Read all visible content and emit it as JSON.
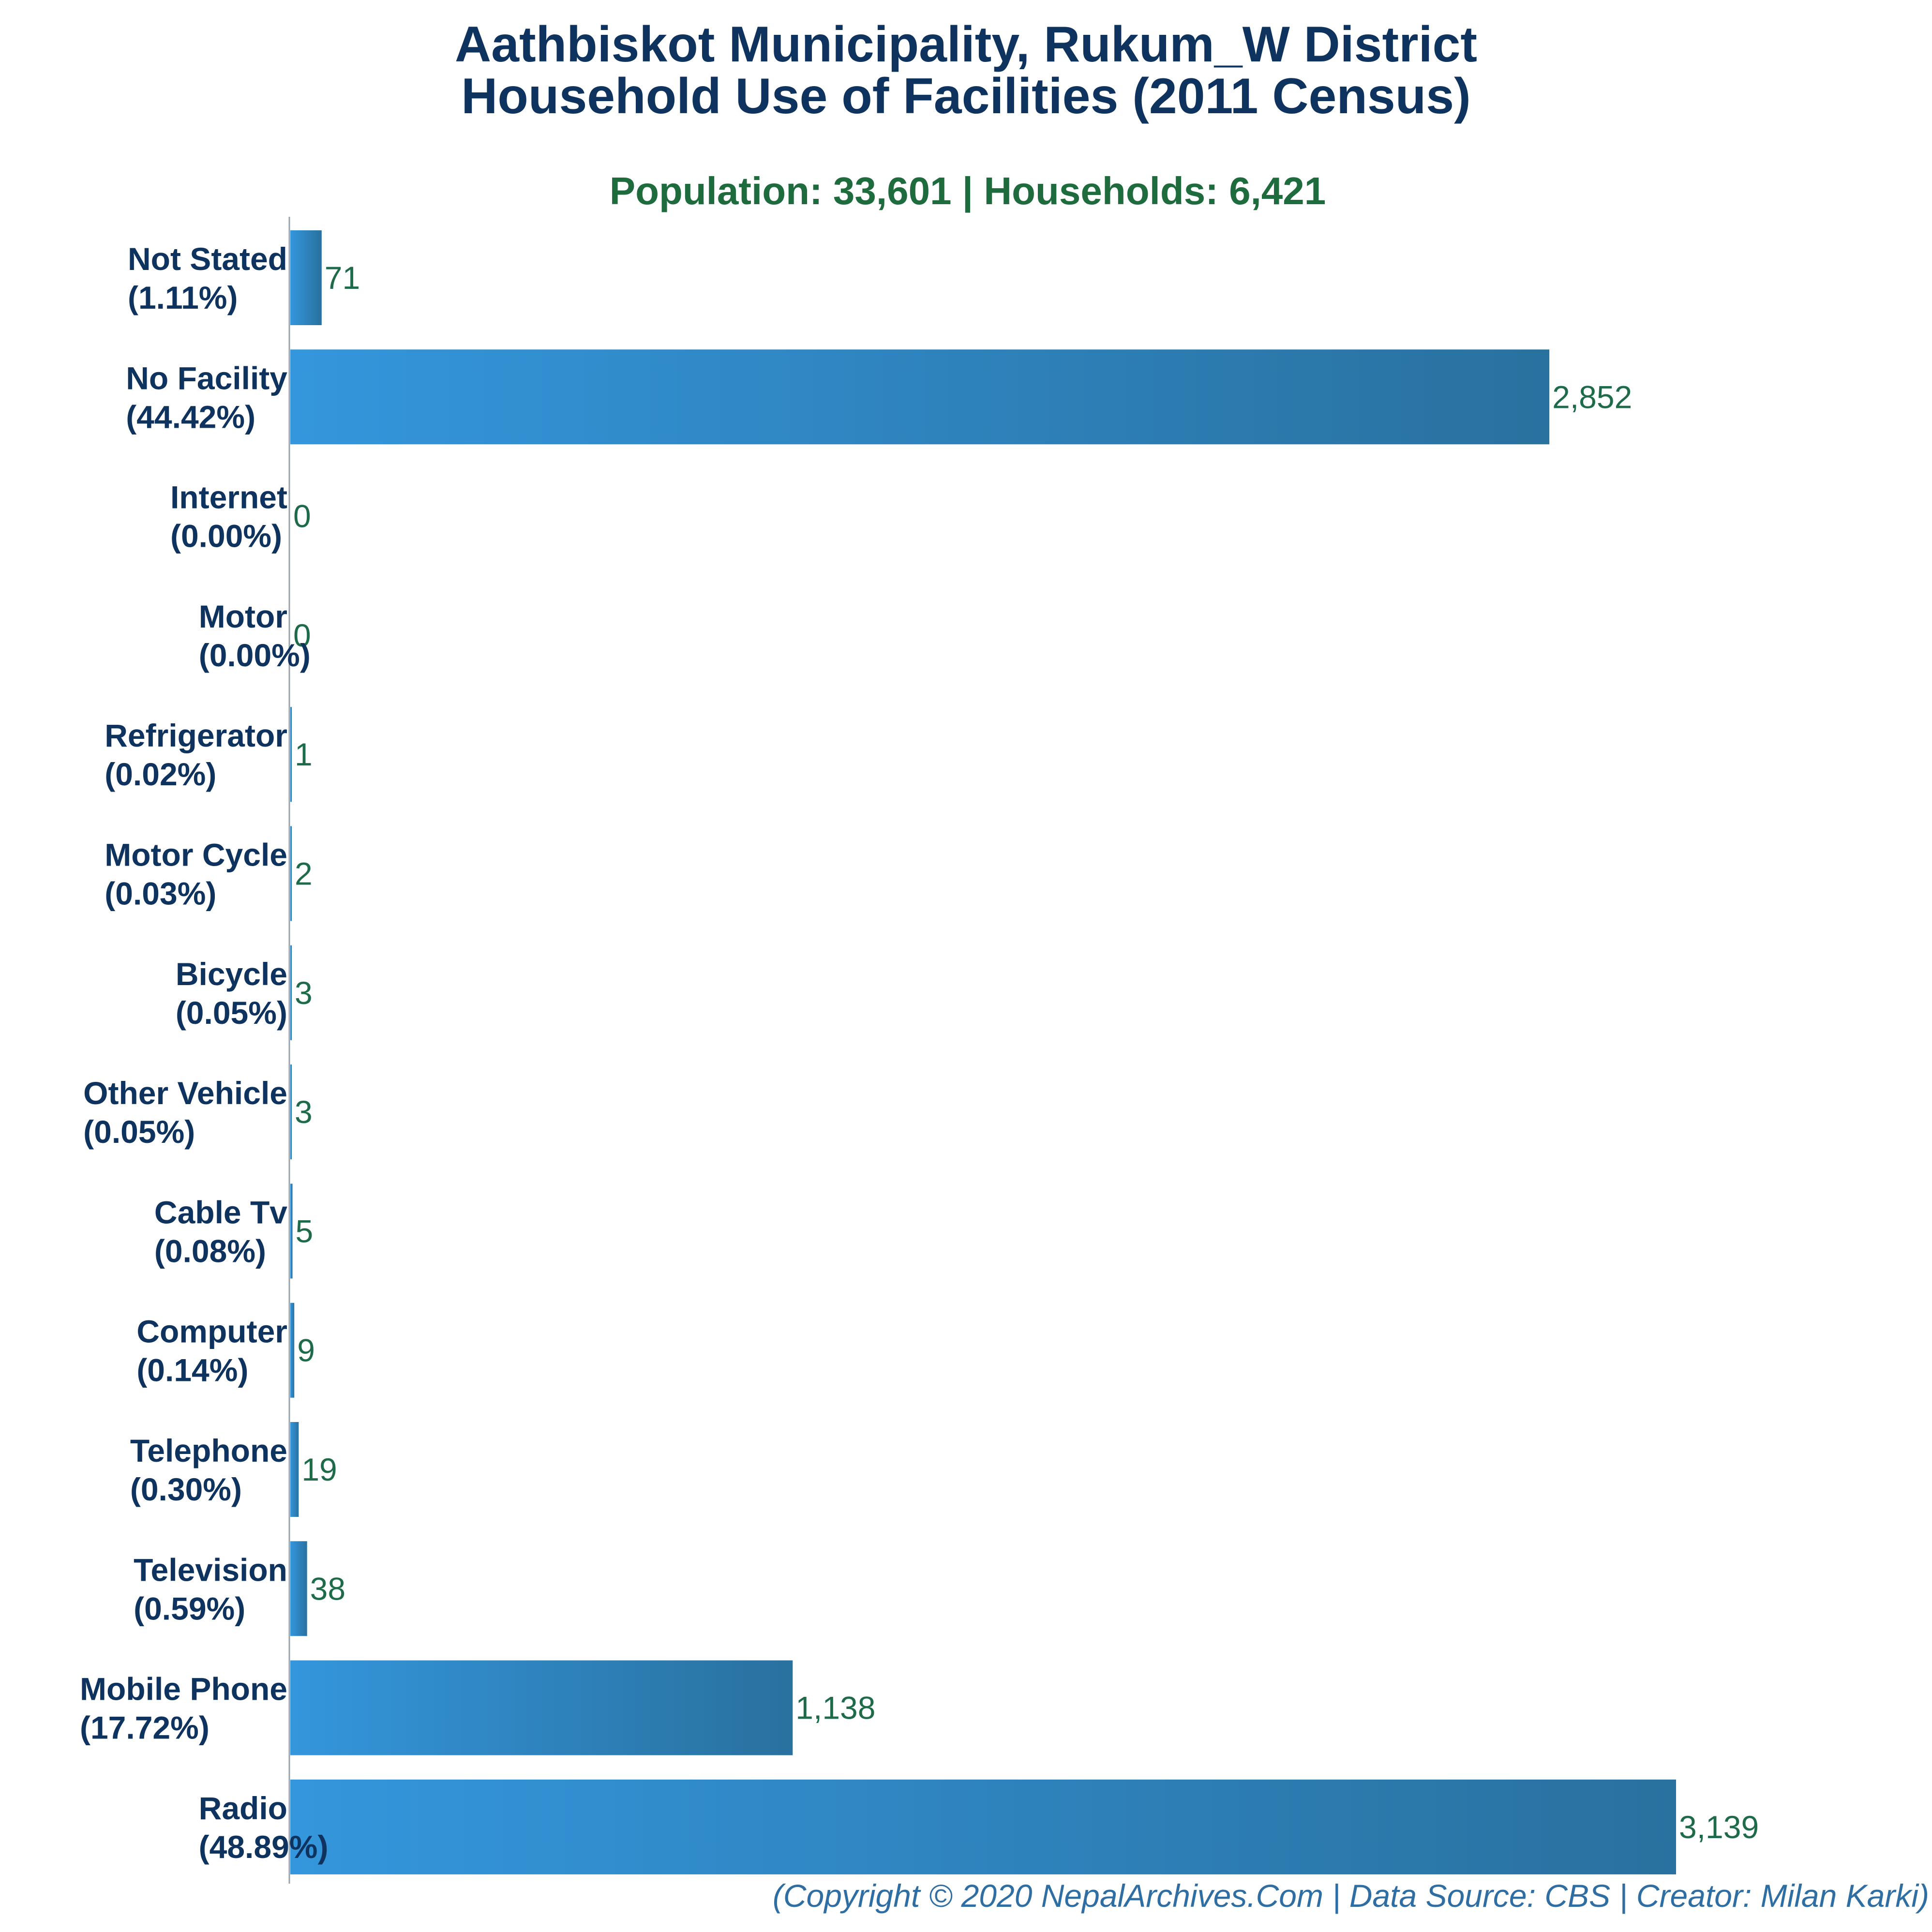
{
  "colors": {
    "bar_start": "#3496dc",
    "bar_end": "#29719f",
    "title": "#0f335f",
    "subtitle": "#1e6b3d",
    "value_label": "#1e6b4a",
    "footer": "#2f6ea3"
  },
  "title_line1": "Aathbiskot Municipality, Rukum_W District",
  "title_line2": "Household Use of Facilities (2011 Census)",
  "subtitle": "Population: 33,601 | Households: 6,421",
  "footer": "(Copyright © 2020 NepalArchives.Com | Data Source: CBS | Creator: Milan Karki)",
  "chart_data": {
    "type": "bar",
    "orientation": "horizontal",
    "title": "Aathbiskot Municipality, Rukum_W District Household Use of Facilities (2011 Census)",
    "subtitle": "Population: 33,601 | Households: 6,421",
    "xlabel": "",
    "ylabel": "",
    "grid": false,
    "legend": "none",
    "xlim": [
      0,
      3139
    ],
    "categories": [
      {
        "name": "Not Stated",
        "pct": "(1.11%)",
        "value": 71,
        "label": "71"
      },
      {
        "name": "No Facility",
        "pct": "(44.42%)",
        "value": 2852,
        "label": "2,852"
      },
      {
        "name": "Internet",
        "pct": "(0.00%)",
        "value": 0,
        "label": "0"
      },
      {
        "name": "Motor",
        "pct": "(0.00%)",
        "value": 0,
        "label": "0"
      },
      {
        "name": "Refrigerator",
        "pct": "(0.02%)",
        "value": 1,
        "label": "1"
      },
      {
        "name": "Motor Cycle",
        "pct": "(0.03%)",
        "value": 2,
        "label": "2"
      },
      {
        "name": "Bicycle",
        "pct": "(0.05%)",
        "value": 3,
        "label": "3"
      },
      {
        "name": "Other Vehicle",
        "pct": "(0.05%)",
        "value": 3,
        "label": "3"
      },
      {
        "name": "Cable Tv",
        "pct": "(0.08%)",
        "value": 5,
        "label": "5"
      },
      {
        "name": "Computer",
        "pct": "(0.14%)",
        "value": 9,
        "label": "9"
      },
      {
        "name": "Telephone",
        "pct": "(0.30%)",
        "value": 19,
        "label": "19"
      },
      {
        "name": "Television",
        "pct": "(0.59%)",
        "value": 38,
        "label": "38"
      },
      {
        "name": "Mobile Phone",
        "pct": "(17.72%)",
        "value": 1138,
        "label": "1,138"
      },
      {
        "name": "Radio",
        "pct": "(48.89%)",
        "value": 3139,
        "label": "3,139"
      }
    ]
  }
}
